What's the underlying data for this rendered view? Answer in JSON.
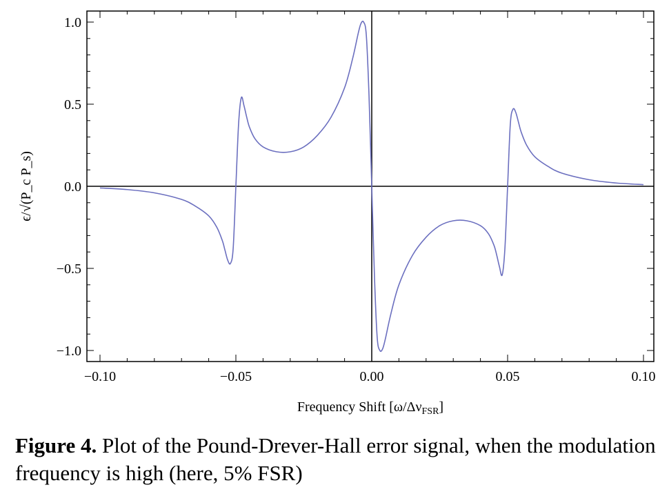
{
  "chart_data": {
    "type": "line",
    "title": "",
    "xlabel": "Frequency Shift [ω/Δν",
    "xlabel_sub": "FSR",
    "xlabel_close": "]",
    "ylabel": "ϵ/√(P_c P_s)",
    "xlim": [
      -0.1,
      0.1
    ],
    "ylim": [
      -1.05,
      1.05
    ],
    "x_ticks": [
      -0.1,
      -0.05,
      0.0,
      0.05,
      0.1
    ],
    "x_tick_labels": [
      "−0.10",
      "−0.05",
      "0.00",
      "0.05",
      "0.10"
    ],
    "y_ticks": [
      -1.0,
      -0.5,
      0.0,
      0.5,
      1.0
    ],
    "y_tick_labels": [
      "−1.0",
      "−0.5",
      "0.0",
      "0.5",
      "1.0"
    ],
    "series": [
      {
        "x": [
          -0.1,
          -0.09,
          -0.08,
          -0.07,
          -0.065,
          -0.06,
          -0.057,
          -0.055,
          -0.054,
          -0.053,
          -0.052,
          -0.051,
          -0.05,
          -0.049,
          -0.048,
          -0.047,
          -0.046,
          -0.045,
          -0.043,
          -0.04,
          -0.035,
          -0.03,
          -0.025,
          -0.02,
          -0.015,
          -0.01,
          -0.007,
          -0.005,
          -0.004,
          -0.003,
          -0.002,
          -0.001,
          0.0,
          0.001,
          0.002,
          0.003,
          0.004,
          0.005,
          0.007,
          0.01,
          0.015,
          0.02,
          0.025,
          0.03,
          0.035,
          0.04,
          0.043,
          0.045,
          0.046,
          0.047,
          0.048,
          0.049,
          0.05,
          0.051,
          0.052,
          0.053,
          0.054,
          0.055,
          0.057,
          0.06,
          0.065,
          0.07,
          0.08,
          0.09,
          0.1
        ],
        "y": [
          -0.01,
          -0.02,
          -0.04,
          -0.08,
          -0.12,
          -0.18,
          -0.25,
          -0.33,
          -0.39,
          -0.45,
          -0.47,
          -0.38,
          0.0,
          0.38,
          0.54,
          0.49,
          0.42,
          0.36,
          0.29,
          0.24,
          0.21,
          0.21,
          0.24,
          0.31,
          0.42,
          0.6,
          0.78,
          0.93,
          0.99,
          1.0,
          0.92,
          0.55,
          0.0,
          -0.55,
          -0.92,
          -1.0,
          -0.99,
          -0.93,
          -0.78,
          -0.6,
          -0.42,
          -0.31,
          -0.24,
          -0.21,
          -0.21,
          -0.24,
          -0.29,
          -0.36,
          -0.42,
          -0.49,
          -0.54,
          -0.38,
          0.0,
          0.38,
          0.47,
          0.45,
          0.39,
          0.33,
          0.25,
          0.18,
          0.12,
          0.08,
          0.04,
          0.02,
          0.01
        ]
      }
    ],
    "line_color": "#6b6fbf",
    "grid": false
  },
  "caption": {
    "label": "Figure 4.",
    "text": " Plot of the Pound-Drever-Hall error signal, when the modulation frequency is high (here, 5% FSR)"
  }
}
